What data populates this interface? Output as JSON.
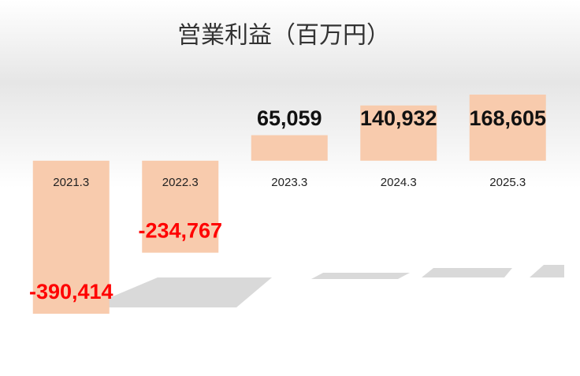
{
  "chart_data": {
    "type": "bar",
    "title": "営業利益（百万円）",
    "categories": [
      "2021.3",
      "2022.3",
      "2023.3",
      "2024.3",
      "2025.3"
    ],
    "values": [
      -390414,
      -234767,
      65059,
      140932,
      168605
    ],
    "value_labels": [
      "-390,414",
      "-234,767",
      "65,059",
      "140,932",
      "168,605"
    ],
    "color": "#f8cbad"
  }
}
